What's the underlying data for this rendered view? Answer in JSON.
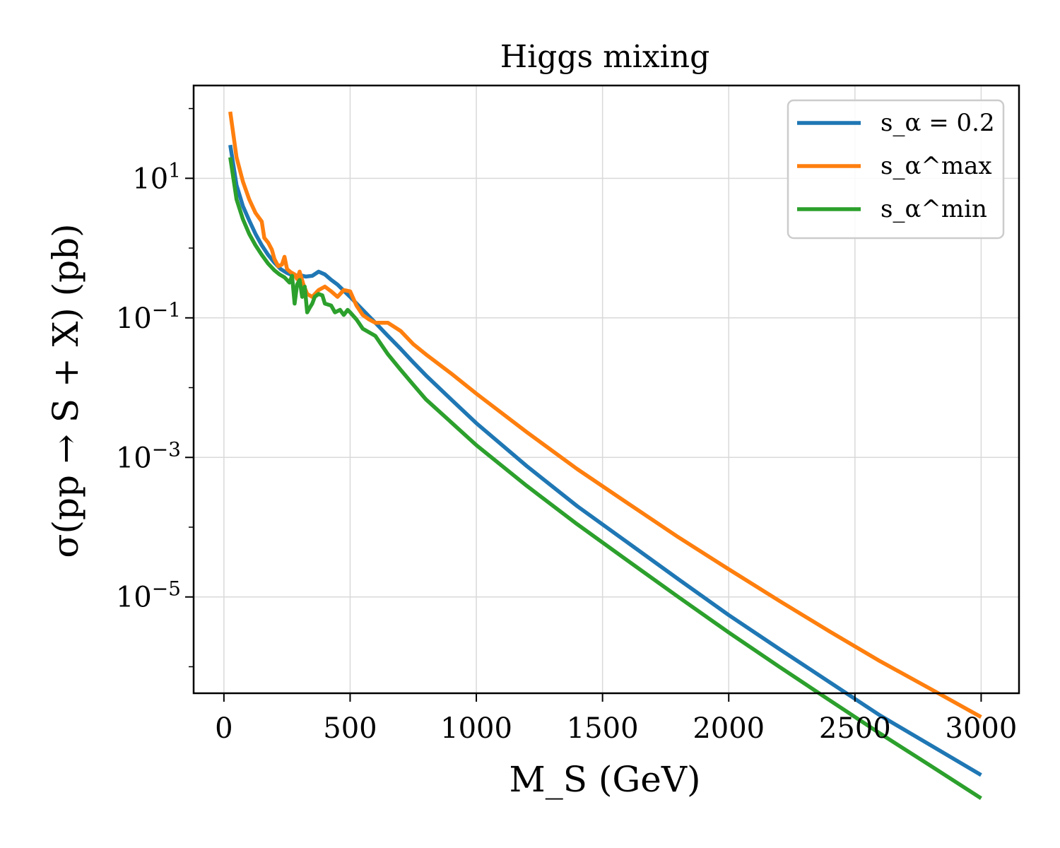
{
  "chart_data": {
    "type": "line",
    "title": "Higgs mixing",
    "xlabel": "M_S (GeV)",
    "ylabel": "σ(pp → S + X) (pb)",
    "xlim": [
      -120,
      3150
    ],
    "xticks": [
      0,
      500,
      1000,
      1500,
      2000,
      2500,
      3000
    ],
    "yscale": "log",
    "ylim_log10": [
      -6.38,
      2.33
    ],
    "yticks_log10": [
      1,
      -1,
      -3,
      -5
    ],
    "ytick_labels": [
      "10^1",
      "10^-1",
      "10^-3",
      "10^-5"
    ],
    "grid": true,
    "legend_position": "top-right",
    "series": [
      {
        "name": "s_α = 0.2",
        "color": "#1f77b4",
        "x": [
          25,
          50,
          75,
          100,
          125,
          150,
          175,
          200,
          225,
          250,
          275,
          300,
          325,
          350,
          375,
          400,
          425,
          450,
          500,
          550,
          600,
          650,
          700,
          750,
          800,
          900,
          1000,
          1200,
          1400,
          1600,
          1800,
          2000,
          2200,
          2400,
          2600,
          2800,
          3000
        ],
        "y": [
          30,
          8,
          4,
          2.5,
          1.6,
          1.1,
          0.8,
          0.62,
          0.5,
          0.44,
          0.4,
          0.41,
          0.39,
          0.4,
          0.46,
          0.42,
          0.35,
          0.3,
          0.2,
          0.13,
          0.085,
          0.055,
          0.036,
          0.023,
          0.015,
          0.0068,
          0.0031,
          0.00075,
          0.0002,
          6e-05,
          1.8e-05,
          5.5e-06,
          1.8e-06,
          6e-07,
          2e-07,
          7.5e-08,
          2.8e-08
        ]
      },
      {
        "name": "s_α^max",
        "color": "#ff7f0e",
        "x": [
          25,
          50,
          75,
          100,
          125,
          150,
          160,
          175,
          190,
          200,
          215,
          230,
          240,
          250,
          265,
          280,
          290,
          300,
          315,
          330,
          350,
          375,
          400,
          425,
          450,
          475,
          500,
          525,
          550,
          575,
          600,
          650,
          700,
          750,
          800,
          900,
          1000,
          1200,
          1400,
          1600,
          1800,
          2000,
          2200,
          2400,
          2600,
          2800,
          3000
        ],
        "y": [
          90,
          20,
          9,
          5,
          3.2,
          2.4,
          1.4,
          1.2,
          0.95,
          0.7,
          0.55,
          0.58,
          0.75,
          0.5,
          0.45,
          0.42,
          0.36,
          0.46,
          0.3,
          0.22,
          0.2,
          0.25,
          0.28,
          0.24,
          0.2,
          0.25,
          0.24,
          0.15,
          0.11,
          0.095,
          0.085,
          0.085,
          0.065,
          0.042,
          0.03,
          0.016,
          0.0082,
          0.0023,
          0.00068,
          0.00022,
          7.2e-05,
          2.5e-05,
          8.8e-06,
          3.2e-06,
          1.2e-06,
          4.8e-07,
          1.9e-07
        ]
      },
      {
        "name": "s_α^min",
        "color": "#2ca02c",
        "x": [
          25,
          50,
          75,
          100,
          125,
          150,
          175,
          200,
          220,
          240,
          260,
          270,
          280,
          290,
          300,
          310,
          320,
          330,
          340,
          350,
          360,
          375,
          390,
          400,
          425,
          440,
          460,
          475,
          490,
          500,
          525,
          550,
          600,
          650,
          700,
          750,
          800,
          900,
          1000,
          1200,
          1400,
          1600,
          1800,
          2000,
          2200,
          2400,
          2600,
          2800,
          3000
        ],
        "y": [
          20,
          5,
          2.6,
          1.6,
          1.1,
          0.8,
          0.6,
          0.48,
          0.42,
          0.38,
          0.32,
          0.4,
          0.16,
          0.3,
          0.35,
          0.2,
          0.28,
          0.12,
          0.14,
          0.16,
          0.2,
          0.22,
          0.21,
          0.16,
          0.15,
          0.12,
          0.13,
          0.11,
          0.13,
          0.12,
          0.095,
          0.07,
          0.055,
          0.03,
          0.018,
          0.011,
          0.0068,
          0.0032,
          0.0015,
          0.00039,
          0.00011,
          3.3e-05,
          1e-05,
          3.1e-06,
          1e-06,
          3.3e-07,
          1.1e-07,
          3.8e-08,
          1.3e-08
        ]
      }
    ]
  }
}
